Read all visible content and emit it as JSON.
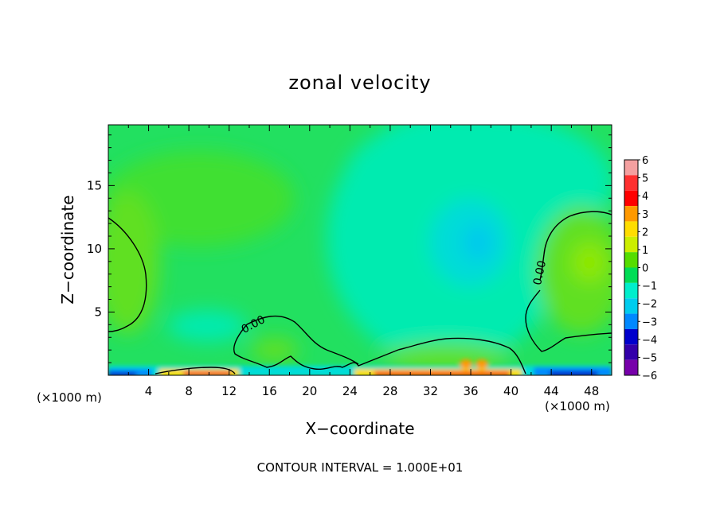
{
  "chart_data": {
    "type": "heatmap",
    "title": "zonal velocity",
    "xlabel": "X−coordinate",
    "ylabel": "Z−coordinate",
    "x_unit": "(×1000 m)",
    "x_unit_right": "(×1000 m)",
    "xlim": [
      0,
      50
    ],
    "ylim": [
      0,
      19.8
    ],
    "x_ticks": [
      4,
      8,
      12,
      16,
      20,
      24,
      28,
      32,
      36,
      40,
      44,
      48
    ],
    "x_tick_labels": [
      "4",
      "8",
      "12",
      "16",
      "20",
      "24",
      "28",
      "32",
      "36",
      "40",
      "44",
      "48"
    ],
    "y_ticks": [
      5,
      10,
      15
    ],
    "y_tick_labels": [
      "5",
      "10",
      "15"
    ],
    "contour_interval_text": "CONTOUR INTERVAL = 1.000E+01",
    "contour_label": "0.00",
    "colorbar": {
      "levels": [
        6,
        5,
        4,
        3,
        2,
        1,
        0,
        -1,
        -2,
        -3,
        -4,
        -5,
        -6
      ],
      "labels": [
        "6",
        "5",
        "4",
        "3",
        "2",
        "1",
        "0",
        "−1",
        "−2",
        "−3",
        "−4",
        "−5",
        "−6"
      ],
      "colors": [
        "#f4a0a0",
        "#ff3030",
        "#ff0000",
        "#ff9900",
        "#ffdd00",
        "#ccee00",
        "#55dd00",
        "#00dd55",
        "#00eecc",
        "#00ccee",
        "#0088ff",
        "#0000cc",
        "#3300aa",
        "#7700aa"
      ]
    },
    "field_features": [
      {
        "label": "negative core",
        "x": 36.5,
        "z": 10.5,
        "value": -2.6
      },
      {
        "label": "left positive region",
        "x": 2.5,
        "z": 8.0,
        "value": 0.8
      },
      {
        "label": "right positive region",
        "x": 47.5,
        "z": 9.0,
        "value": 1.0
      },
      {
        "label": "near-surface max",
        "x": 35.5,
        "z": 0.6,
        "value": 3.0
      },
      {
        "label": "near-surface min left",
        "x": 1.0,
        "z": 0.2,
        "value": -4.0
      },
      {
        "label": "near-surface min right",
        "x": 45.0,
        "z": 0.3,
        "value": -4.5
      }
    ]
  }
}
